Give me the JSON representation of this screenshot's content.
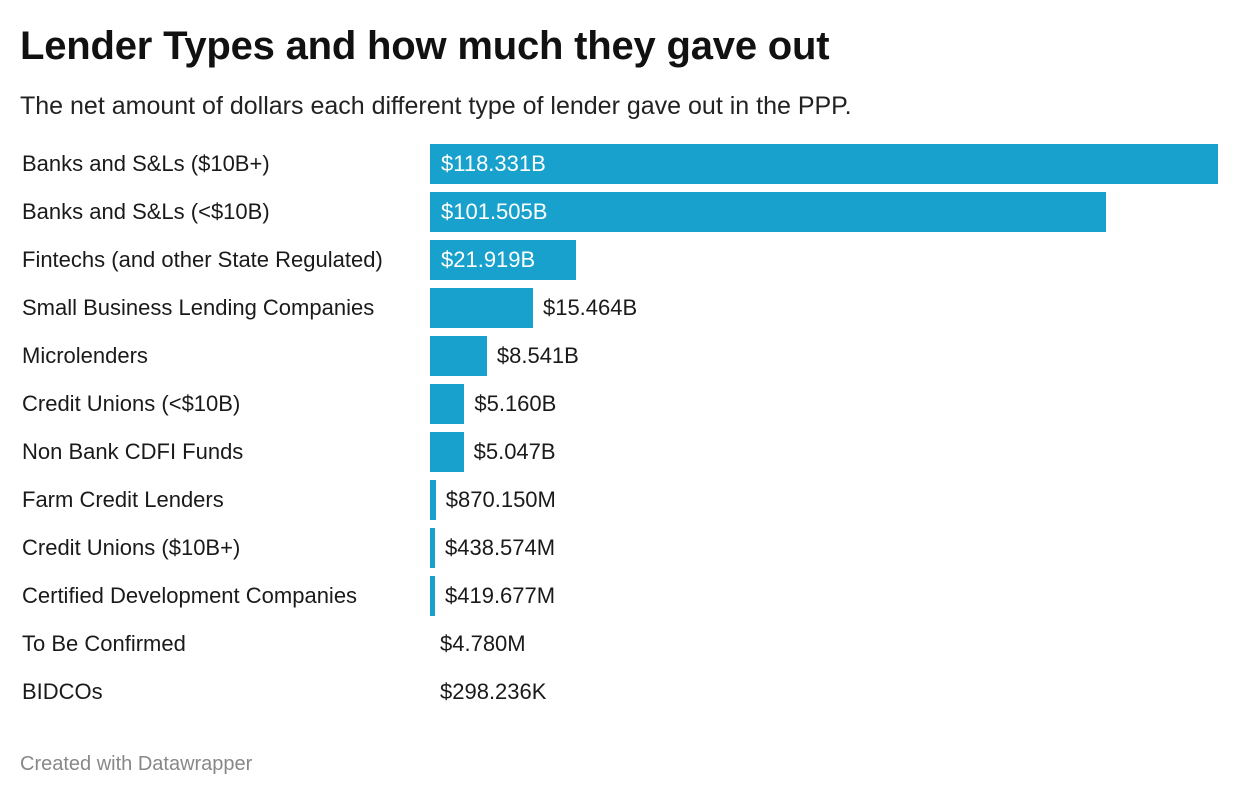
{
  "chart_data": {
    "type": "bar",
    "orientation": "horizontal",
    "title": "Lender Types and how much they gave out",
    "subtitle": "The net amount of dollars each different type of lender gave out in the PPP.",
    "unit": "USD",
    "categories": [
      "Banks and S&Ls ($10B+)",
      "Banks and S&Ls (<$10B)",
      "Fintechs (and other State Regulated)",
      "Small Business Lending Companies",
      "Microlenders",
      "Credit Unions (<$10B)",
      "Non Bank CDFI Funds",
      "Farm Credit Lenders",
      "Credit Unions ($10B+)",
      "Certified Development Companies",
      "To Be Confirmed",
      "BIDCOs"
    ],
    "values": [
      118331000000,
      101505000000,
      21919000000,
      15464000000,
      8541000000,
      5160000000,
      5047000000,
      870150000,
      438574000,
      419677000,
      4780000,
      298236
    ],
    "value_labels": [
      "$118.331B",
      "$101.505B",
      "$21.919B",
      "$15.464B",
      "$8.541B",
      "$5.160B",
      "$5.047B",
      "$870.150M",
      "$438.574M",
      "$419.677M",
      "$4.780M",
      "$298.236K"
    ],
    "xlim": [
      0,
      118331000000
    ],
    "bar_color": "#18a1cd",
    "grid": false,
    "legend": "none"
  },
  "footer": {
    "credit": "Created with Datawrapper"
  }
}
